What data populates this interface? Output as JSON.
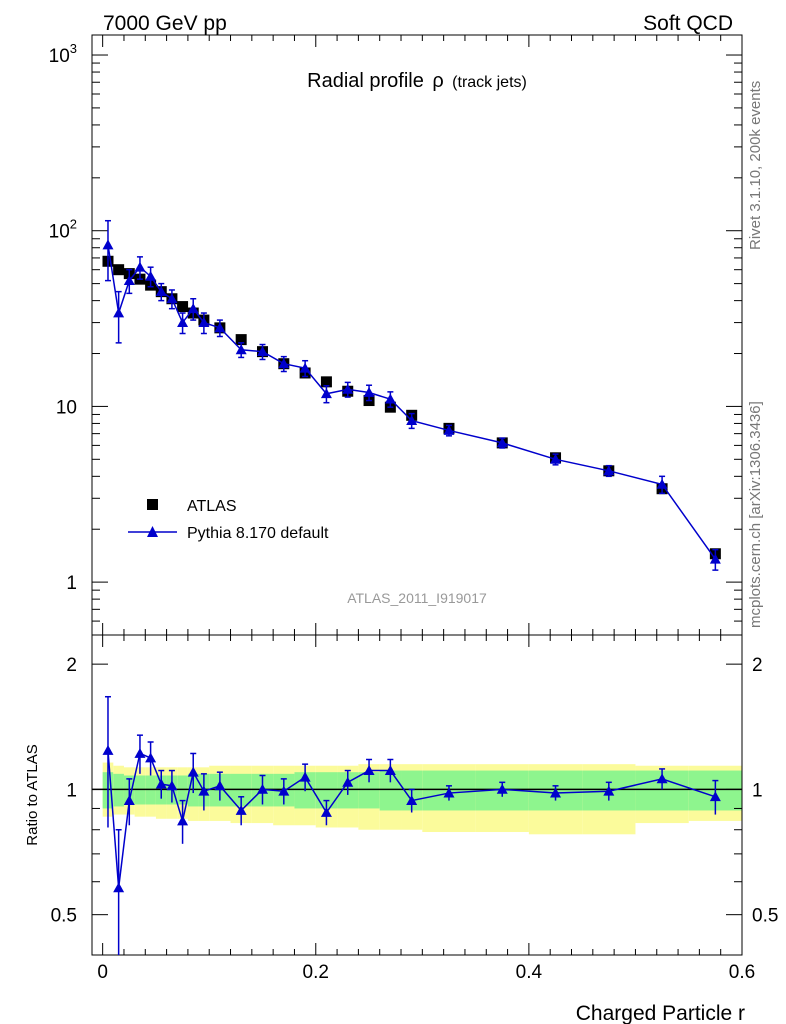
{
  "header": {
    "left": "7000 GeV pp",
    "right": "Soft QCD"
  },
  "side_labels": {
    "rivet": "Rivet 3.1.10,  200k events",
    "mcplots": "mcplots.cern.ch [arXiv:1306.3436]"
  },
  "chart_data": [
    {
      "type": "scatter",
      "panel": "main",
      "title_main": "Radial profile",
      "title_symbol": "ρ",
      "title_sub": "(track jets)",
      "analysis_tag": "ATLAS_2011_I919017",
      "xlim": [
        -0.01,
        0.6
      ],
      "ylim": [
        0.5,
        1300
      ],
      "yscale": "log",
      "ytick_labels": [
        "1",
        "10",
        "10",
        "10"
      ],
      "ytick_exponents": [
        "",
        "",
        "2",
        "3"
      ],
      "legend_position": "middle-left",
      "colors": {
        "data": "#000000",
        "mc": "#0000cc"
      },
      "series": [
        {
          "name": "ATLAS",
          "marker": "square",
          "x": [
            0.005,
            0.015,
            0.025,
            0.035,
            0.045,
            0.055,
            0.065,
            0.075,
            0.085,
            0.095,
            0.11,
            0.13,
            0.15,
            0.17,
            0.19,
            0.21,
            0.23,
            0.25,
            0.27,
            0.29,
            0.325,
            0.375,
            0.425,
            0.475,
            0.525,
            0.575
          ],
          "y": [
            67,
            60,
            57,
            53,
            49,
            45,
            41,
            37,
            34,
            31,
            28,
            24,
            20.5,
            17.5,
            15.5,
            13.8,
            12.2,
            10.8,
            9.9,
            8.9,
            7.5,
            6.2,
            5.1,
            4.3,
            3.4,
            1.45
          ]
        },
        {
          "name": "Pythia 8.170 default",
          "marker": "triangle",
          "x": [
            0.005,
            0.015,
            0.025,
            0.035,
            0.045,
            0.055,
            0.065,
            0.075,
            0.085,
            0.095,
            0.11,
            0.13,
            0.15,
            0.17,
            0.19,
            0.21,
            0.23,
            0.25,
            0.27,
            0.29,
            0.325,
            0.375,
            0.425,
            0.475,
            0.525,
            0.575
          ],
          "y": [
            83,
            34,
            52,
            62,
            55,
            45,
            41,
            30,
            36,
            30,
            28,
            21,
            20.5,
            17.5,
            16.5,
            11.8,
            12.5,
            12,
            11,
            8.3,
            7.3,
            6.2,
            5,
            4.3,
            3.6,
            1.35
          ],
          "yerr_low": [
            31,
            11,
            8,
            9,
            7,
            5,
            5,
            4,
            5,
            4,
            3,
            2,
            2,
            1.7,
            1.7,
            1.3,
            1.2,
            1.2,
            1.1,
            0.8,
            0.5,
            0.4,
            0.35,
            0.3,
            0.4,
            0.18
          ],
          "yerr_high": [
            31,
            11,
            8,
            9,
            7,
            5,
            5,
            4,
            5,
            4,
            3,
            2,
            2,
            1.7,
            1.7,
            1.3,
            1.2,
            1.2,
            1.1,
            0.8,
            0.5,
            0.4,
            0.35,
            0.3,
            0.4,
            0.18
          ]
        }
      ]
    },
    {
      "type": "scatter",
      "panel": "ratio",
      "ylabel": "Ratio to ATLAS",
      "xlabel": "Charged Particle r",
      "xlim": [
        -0.01,
        0.6
      ],
      "ylim": [
        0.4,
        2.35
      ],
      "yscale": "log",
      "ytick_labels": [
        "0.5",
        "1",
        "2"
      ],
      "xtick_labels": [
        "0",
        "0.2",
        "0.4",
        "0.6"
      ],
      "colors": {
        "inner_band": "#8ef58e",
        "outer_band": "#fbfb9b",
        "mc": "#0000cc"
      },
      "bands": {
        "x_edges": [
          0,
          0.01,
          0.02,
          0.03,
          0.04,
          0.05,
          0.06,
          0.07,
          0.08,
          0.09,
          0.1,
          0.12,
          0.14,
          0.16,
          0.18,
          0.2,
          0.22,
          0.24,
          0.26,
          0.28,
          0.3,
          0.35,
          0.4,
          0.45,
          0.5,
          0.55,
          0.6
        ],
        "inner_low": [
          0.9,
          0.91,
          0.92,
          0.92,
          0.92,
          0.92,
          0.92,
          0.92,
          0.91,
          0.91,
          0.91,
          0.91,
          0.91,
          0.91,
          0.9,
          0.9,
          0.9,
          0.9,
          0.89,
          0.89,
          0.89,
          0.89,
          0.89,
          0.89,
          0.89,
          0.89
        ],
        "inner_high": [
          1.1,
          1.09,
          1.08,
          1.08,
          1.08,
          1.08,
          1.08,
          1.08,
          1.09,
          1.09,
          1.09,
          1.09,
          1.09,
          1.09,
          1.1,
          1.1,
          1.1,
          1.1,
          1.11,
          1.11,
          1.11,
          1.11,
          1.11,
          1.11,
          1.11,
          1.11
        ],
        "outer_low": [
          0.86,
          0.87,
          0.87,
          0.86,
          0.86,
          0.85,
          0.85,
          0.85,
          0.84,
          0.84,
          0.84,
          0.83,
          0.83,
          0.82,
          0.82,
          0.81,
          0.81,
          0.8,
          0.8,
          0.8,
          0.79,
          0.79,
          0.78,
          0.78,
          0.83,
          0.84
        ],
        "outer_high": [
          1.16,
          1.14,
          1.13,
          1.13,
          1.13,
          1.13,
          1.13,
          1.13,
          1.13,
          1.13,
          1.14,
          1.14,
          1.14,
          1.14,
          1.14,
          1.14,
          1.14,
          1.15,
          1.15,
          1.15,
          1.15,
          1.15,
          1.15,
          1.15,
          1.14,
          1.14
        ]
      },
      "series": [
        {
          "name": "Pythia 8.170 default",
          "marker": "triangle",
          "x": [
            0.005,
            0.015,
            0.025,
            0.035,
            0.045,
            0.055,
            0.065,
            0.075,
            0.085,
            0.095,
            0.11,
            0.13,
            0.15,
            0.17,
            0.19,
            0.21,
            0.23,
            0.25,
            0.27,
            0.29,
            0.325,
            0.375,
            0.425,
            0.475,
            0.525,
            0.575
          ],
          "y": [
            1.24,
            0.58,
            0.94,
            1.22,
            1.19,
            1.03,
            1.02,
            0.84,
            1.1,
            0.99,
            1.02,
            0.89,
            1.0,
            0.99,
            1.07,
            0.88,
            1.04,
            1.11,
            1.11,
            0.94,
            0.98,
            1.0,
            0.98,
            0.99,
            1.06,
            0.96
          ],
          "yerr_low": [
            0.43,
            0.22,
            0.12,
            0.13,
            0.11,
            0.08,
            0.09,
            0.1,
            0.12,
            0.1,
            0.08,
            0.07,
            0.08,
            0.07,
            0.08,
            0.06,
            0.07,
            0.07,
            0.07,
            0.06,
            0.04,
            0.04,
            0.04,
            0.05,
            0.06,
            0.09
          ],
          "yerr_high": [
            0.43,
            0.22,
            0.12,
            0.13,
            0.11,
            0.08,
            0.09,
            0.1,
            0.12,
            0.1,
            0.08,
            0.07,
            0.08,
            0.07,
            0.08,
            0.06,
            0.07,
            0.07,
            0.07,
            0.06,
            0.04,
            0.04,
            0.04,
            0.05,
            0.06,
            0.09
          ]
        }
      ]
    }
  ]
}
